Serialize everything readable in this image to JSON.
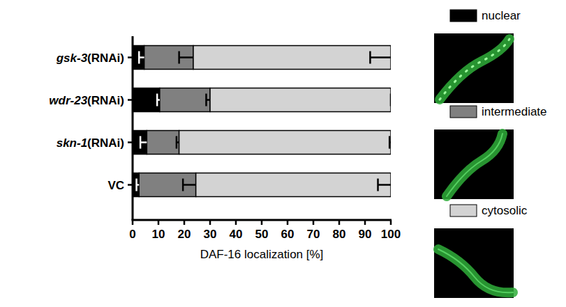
{
  "chart_data": {
    "type": "bar",
    "orientation": "horizontal",
    "stacked": true,
    "x_label": "DAF-16 localization [%]",
    "categories": [
      "gsk-3(RNAi)",
      "wdr-23(RNAi)",
      "skn-1(RNAi)",
      "VC"
    ],
    "series": [
      {
        "name": "nuclear",
        "color": "#000000",
        "values": [
          4.5,
          10.5,
          5.5,
          2.5
        ],
        "errors": [
          2,
          1,
          2.5,
          1
        ]
      },
      {
        "name": "intermediate",
        "color": "#808080",
        "values": [
          19,
          19.5,
          12.5,
          22
        ],
        "errors": [
          5.5,
          1.5,
          1,
          5
        ]
      },
      {
        "name": "cytosolic",
        "color": "#d3d3d3",
        "values": [
          76.5,
          70,
          82,
          75.5
        ],
        "errors": [
          8,
          0,
          0.5,
          5
        ]
      }
    ],
    "xlim": [
      0,
      100
    ],
    "xticks": [
      0,
      10,
      20,
      30,
      40,
      50,
      60,
      70,
      80,
      90,
      100
    ],
    "legend": "right",
    "grid": false
  }
}
